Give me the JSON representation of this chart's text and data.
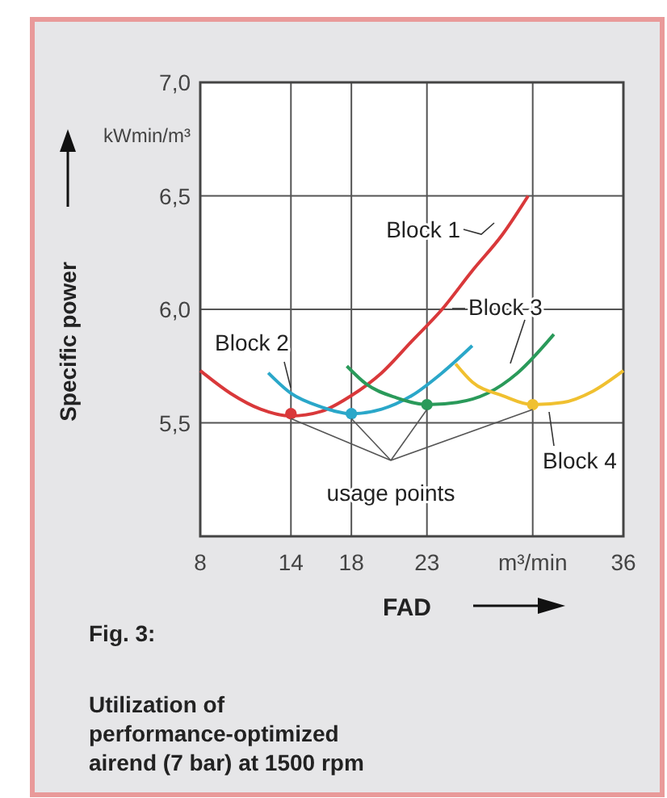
{
  "chart_data": {
    "type": "line",
    "title": "Fig. 3:",
    "subtitle": "Utilization of performance-optimized airend (7 bar) at 1500 rpm",
    "xlabel": "FAD",
    "ylabel": "Specific power",
    "xlim": [
      8,
      36
    ],
    "xticks": [
      8,
      14,
      18,
      23,
      {
        "value": 30,
        "label": "m³/min"
      },
      36
    ],
    "ylim": [
      5.0,
      7.0
    ],
    "yticks": [
      {
        "value": 5.0,
        "label": null
      },
      {
        "value": 5.5,
        "label": "5,5"
      },
      {
        "value": 6.0,
        "label": "6,0"
      },
      {
        "value": 6.5,
        "label": "6,5"
      },
      {
        "value": 7.0,
        "label": "7,0"
      }
    ],
    "grid": true,
    "marker": "none",
    "line_style": "solid",
    "series": [
      {
        "name": "Block 1",
        "color": "#d9383a",
        "x": [
          8,
          10,
          12,
          14,
          16,
          18,
          20,
          22,
          24,
          26,
          28,
          29.7
        ],
        "values": [
          5.73,
          5.63,
          5.56,
          5.53,
          5.55,
          5.62,
          5.72,
          5.86,
          6.0,
          6.17,
          6.33,
          6.5
        ]
      },
      {
        "name": "Block 2",
        "color": "#2aa7c9",
        "x": [
          12.5,
          14,
          16,
          18,
          20,
          22,
          24,
          26
        ],
        "values": [
          5.72,
          5.63,
          5.57,
          5.54,
          5.56,
          5.62,
          5.72,
          5.84
        ]
      },
      {
        "name": "Block 3",
        "color": "#2a9a5a",
        "x": [
          17.7,
          19,
          21,
          23,
          25,
          27,
          29,
          31.4
        ],
        "values": [
          5.75,
          5.67,
          5.61,
          5.58,
          5.59,
          5.63,
          5.72,
          5.89
        ]
      },
      {
        "name": "Block 4",
        "color": "#f0c030",
        "x": [
          24.9,
          26,
          28,
          30,
          32,
          34,
          36
        ],
        "values": [
          5.76,
          5.68,
          5.62,
          5.58,
          5.59,
          5.64,
          5.73
        ]
      },
      {
        "type": "scatter",
        "marker": "circle",
        "x": [
          14,
          18,
          23,
          30
        ],
        "values": [
          5.54,
          5.54,
          5.58,
          5.58
        ],
        "colors": [
          "#d9383a",
          "#2aa7c9",
          "#2a9a5a",
          "#f0c030"
        ]
      }
    ],
    "annotations": [
      "kWmin/m³",
      {
        "text": "usage points",
        "x": 14,
        "y": 5.54
      }
    ]
  }
}
